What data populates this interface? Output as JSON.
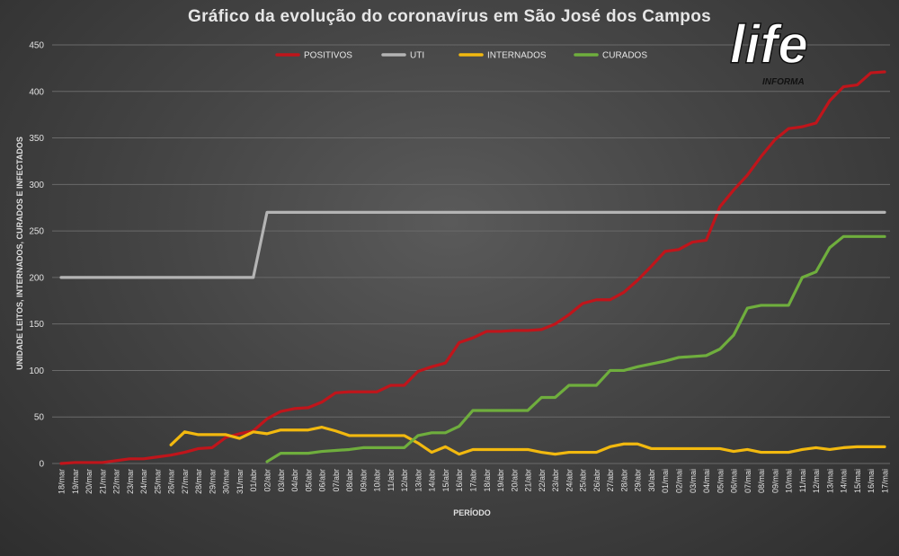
{
  "chart_data": {
    "type": "line",
    "title": "Gráfico da evolução do coronavírus em São José dos Campos",
    "xlabel": "PERÍODO",
    "ylabel": "UNIDADE LEITOS, INTERNADOS, CURADOS E INFECTADOS",
    "ylim": [
      0,
      450
    ],
    "yticks": [
      0,
      50,
      100,
      150,
      200,
      250,
      300,
      350,
      400,
      450
    ],
    "grid": true,
    "legend": "top",
    "categories": [
      "18/mar",
      "19/mar",
      "20/mar",
      "21/mar",
      "22/mar",
      "23/mar",
      "24/mar",
      "25/mar",
      "26/mar",
      "27/mar",
      "28/mar",
      "29/mar",
      "30/mar",
      "31/mar",
      "01/abr",
      "02/abr",
      "03/abr",
      "04/abr",
      "05/abr",
      "06/abr",
      "07/abr",
      "08/abr",
      "09/abr",
      "10/abr",
      "11/abr",
      "12/abr",
      "13/abr",
      "14/abr",
      "15/abr",
      "16/abr",
      "17/abr",
      "18/abr",
      "19/abr",
      "20/abr",
      "21/abr",
      "22/abr",
      "23/abr",
      "24/abr",
      "25/abr",
      "26/abr",
      "27/abr",
      "28/abr",
      "29/abr",
      "30/abr",
      "01/mai",
      "02/mai",
      "03/mai",
      "04/mai",
      "05/mai",
      "06/mai",
      "07/mai",
      "08/mai",
      "09/mai",
      "10/mai",
      "11/mai",
      "12/mai",
      "13/mai",
      "14/mai",
      "15/mai",
      "16/mai",
      "17/mai"
    ],
    "series": [
      {
        "name": "POSITIVOS",
        "color": "#c0151b",
        "values": [
          0,
          1,
          1,
          1,
          3,
          5,
          5,
          7,
          9,
          12,
          16,
          17,
          28,
          32,
          35,
          48,
          56,
          59,
          60,
          66,
          76,
          77,
          77,
          77,
          84,
          84,
          99,
          104,
          108,
          130,
          135,
          142,
          142,
          143,
          143,
          144,
          150,
          160,
          172,
          176,
          176,
          184,
          197,
          212,
          228,
          230,
          238,
          240,
          276,
          294,
          310,
          330,
          348,
          360,
          362,
          366,
          390,
          405,
          407,
          420,
          421
        ]
      },
      {
        "name": "UTI",
        "color": "#b4b4b4",
        "values": [
          200,
          200,
          200,
          200,
          200,
          200,
          200,
          200,
          200,
          200,
          200,
          200,
          200,
          200,
          200,
          270,
          270,
          270,
          270,
          270,
          270,
          270,
          270,
          270,
          270,
          270,
          270,
          270,
          270,
          270,
          270,
          270,
          270,
          270,
          270,
          270,
          270,
          270,
          270,
          270,
          270,
          270,
          270,
          270,
          270,
          270,
          270,
          270,
          270,
          270,
          270,
          270,
          270,
          270,
          270,
          270,
          270,
          270,
          270,
          270,
          270
        ]
      },
      {
        "name": "INTERNADOS",
        "color": "#f2b90f",
        "values": [
          null,
          null,
          null,
          null,
          null,
          null,
          null,
          null,
          20,
          34,
          31,
          31,
          31,
          27,
          34,
          32,
          36,
          36,
          36,
          39,
          35,
          30,
          30,
          30,
          30,
          30,
          22,
          12,
          18,
          10,
          15,
          15,
          15,
          15,
          15,
          12,
          10,
          12,
          12,
          12,
          18,
          21,
          21,
          16,
          16,
          16,
          16,
          16,
          16,
          13,
          15,
          12,
          12,
          12,
          15,
          17,
          15,
          17,
          18,
          18,
          18
        ]
      },
      {
        "name": "CURADOS",
        "color": "#6fae3d",
        "values": [
          null,
          null,
          null,
          null,
          null,
          null,
          null,
          null,
          null,
          null,
          null,
          null,
          null,
          null,
          null,
          2,
          11,
          11,
          11,
          13,
          14,
          15,
          17,
          17,
          17,
          17,
          30,
          33,
          33,
          40,
          57,
          57,
          57,
          57,
          57,
          71,
          71,
          84,
          84,
          84,
          100,
          100,
          104,
          107,
          110,
          114,
          115,
          116,
          123,
          138,
          167,
          170,
          170,
          170,
          200,
          206,
          232,
          244,
          244,
          244,
          244
        ]
      }
    ]
  }
}
